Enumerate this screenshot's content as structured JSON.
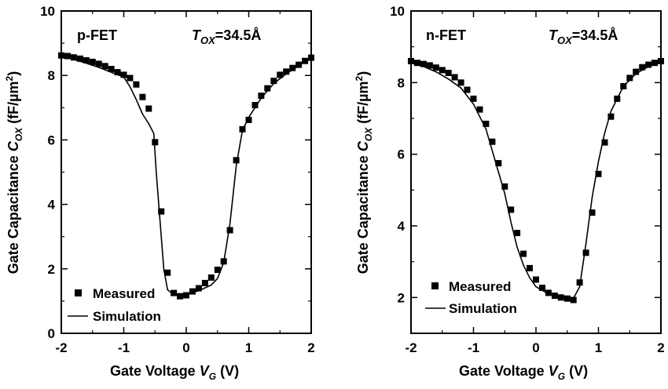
{
  "chart_data": [
    {
      "type": "scatter",
      "panel_label": "p-FET",
      "tox_text": "=34.5Å",
      "xlabel": "Gate Voltage",
      "ylabel": "Gate Capacitance",
      "xlim": [
        -2,
        2
      ],
      "ylim": [
        0,
        10
      ],
      "x_ticks": [
        "-2",
        "-1",
        "0",
        "1",
        "2"
      ],
      "y_ticks": [
        "0",
        "2",
        "4",
        "6",
        "8",
        "10"
      ],
      "legend": {
        "placement": "bottom-left",
        "measured": "Measured",
        "simulation": "Simulation"
      },
      "series": [
        {
          "name": "Measured",
          "style": "square-markers",
          "points": [
            [
              -2.0,
              8.62
            ],
            [
              -1.9,
              8.6
            ],
            [
              -1.8,
              8.56
            ],
            [
              -1.7,
              8.52
            ],
            [
              -1.6,
              8.47
            ],
            [
              -1.5,
              8.42
            ],
            [
              -1.4,
              8.36
            ],
            [
              -1.3,
              8.29
            ],
            [
              -1.2,
              8.2
            ],
            [
              -1.1,
              8.1
            ],
            [
              -1.0,
              8.02
            ],
            [
              -0.9,
              7.92
            ],
            [
              -0.8,
              7.72
            ],
            [
              -0.7,
              7.33
            ],
            [
              -0.6,
              6.97
            ],
            [
              -0.5,
              5.93
            ],
            [
              -0.4,
              3.78
            ],
            [
              -0.3,
              1.88
            ],
            [
              -0.2,
              1.25
            ],
            [
              -0.1,
              1.15
            ],
            [
              0.0,
              1.18
            ],
            [
              0.1,
              1.3
            ],
            [
              0.2,
              1.4
            ],
            [
              0.3,
              1.56
            ],
            [
              0.4,
              1.73
            ],
            [
              0.5,
              1.97
            ],
            [
              0.6,
              2.23
            ],
            [
              0.7,
              3.2
            ],
            [
              0.8,
              5.37
            ],
            [
              0.9,
              6.33
            ],
            [
              1.0,
              6.62
            ],
            [
              1.1,
              7.08
            ],
            [
              1.2,
              7.37
            ],
            [
              1.3,
              7.6
            ],
            [
              1.4,
              7.83
            ],
            [
              1.5,
              8.02
            ],
            [
              1.6,
              8.12
            ],
            [
              1.7,
              8.23
            ],
            [
              1.8,
              8.33
            ],
            [
              1.9,
              8.45
            ],
            [
              2.0,
              8.55
            ]
          ]
        },
        {
          "name": "Simulation",
          "style": "line",
          "points": [
            [
              -2.0,
              8.6
            ],
            [
              -1.8,
              8.5
            ],
            [
              -1.6,
              8.38
            ],
            [
              -1.4,
              8.25
            ],
            [
              -1.2,
              8.1
            ],
            [
              -1.0,
              7.95
            ],
            [
              -0.9,
              7.65
            ],
            [
              -0.8,
              7.25
            ],
            [
              -0.7,
              6.8
            ],
            [
              -0.6,
              6.5
            ],
            [
              -0.52,
              6.2
            ],
            [
              -0.48,
              5.0
            ],
            [
              -0.42,
              3.5
            ],
            [
              -0.36,
              2.0
            ],
            [
              -0.3,
              1.35
            ],
            [
              -0.2,
              1.2
            ],
            [
              -0.1,
              1.2
            ],
            [
              0.0,
              1.22
            ],
            [
              0.2,
              1.32
            ],
            [
              0.4,
              1.5
            ],
            [
              0.5,
              1.7
            ],
            [
              0.6,
              2.2
            ],
            [
              0.7,
              3.4
            ],
            [
              0.8,
              5.2
            ],
            [
              0.9,
              6.3
            ],
            [
              1.0,
              6.7
            ],
            [
              1.2,
              7.3
            ],
            [
              1.4,
              7.75
            ],
            [
              1.6,
              8.05
            ],
            [
              1.8,
              8.3
            ],
            [
              2.0,
              8.55
            ]
          ]
        }
      ]
    },
    {
      "type": "scatter",
      "panel_label": "n-FET",
      "tox_text": "=34.5Å",
      "xlabel": "Gate Voltage",
      "ylabel": "Gate Capacitance",
      "xlim": [
        -2,
        2
      ],
      "ylim": [
        1,
        10
      ],
      "x_ticks": [
        "-2",
        "-1",
        "0",
        "1",
        "2"
      ],
      "y_ticks": [
        "2",
        "4",
        "6",
        "8",
        "10"
      ],
      "legend": {
        "placement": "bottom-left",
        "measured": "Measured",
        "simulation": "Simulation"
      },
      "series": [
        {
          "name": "Measured",
          "style": "square-markers",
          "points": [
            [
              -2.0,
              8.6
            ],
            [
              -1.9,
              8.55
            ],
            [
              -1.8,
              8.52
            ],
            [
              -1.7,
              8.48
            ],
            [
              -1.6,
              8.42
            ],
            [
              -1.5,
              8.35
            ],
            [
              -1.4,
              8.27
            ],
            [
              -1.3,
              8.15
            ],
            [
              -1.2,
              8.0
            ],
            [
              -1.1,
              7.8
            ],
            [
              -1.0,
              7.55
            ],
            [
              -0.9,
              7.25
            ],
            [
              -0.8,
              6.85
            ],
            [
              -0.7,
              6.35
            ],
            [
              -0.6,
              5.75
            ],
            [
              -0.5,
              5.1
            ],
            [
              -0.4,
              4.45
            ],
            [
              -0.3,
              3.8
            ],
            [
              -0.2,
              3.22
            ],
            [
              -0.1,
              2.82
            ],
            [
              0.0,
              2.5
            ],
            [
              0.1,
              2.27
            ],
            [
              0.2,
              2.13
            ],
            [
              0.3,
              2.05
            ],
            [
              0.4,
              2.0
            ],
            [
              0.5,
              1.97
            ],
            [
              0.6,
              1.93
            ],
            [
              0.7,
              2.42
            ],
            [
              0.8,
              3.25
            ],
            [
              0.9,
              4.37
            ],
            [
              1.0,
              5.45
            ],
            [
              1.1,
              6.33
            ],
            [
              1.2,
              7.05
            ],
            [
              1.3,
              7.55
            ],
            [
              1.4,
              7.9
            ],
            [
              1.5,
              8.13
            ],
            [
              1.6,
              8.3
            ],
            [
              1.7,
              8.43
            ],
            [
              1.8,
              8.5
            ],
            [
              1.9,
              8.55
            ],
            [
              2.0,
              8.6
            ]
          ]
        },
        {
          "name": "Simulation",
          "style": "line",
          "points": [
            [
              -2.0,
              8.55
            ],
            [
              -1.8,
              8.45
            ],
            [
              -1.6,
              8.3
            ],
            [
              -1.4,
              8.1
            ],
            [
              -1.2,
              7.85
            ],
            [
              -1.0,
              7.4
            ],
            [
              -0.8,
              6.7
            ],
            [
              -0.6,
              5.5
            ],
            [
              -0.5,
              4.9
            ],
            [
              -0.4,
              4.1
            ],
            [
              -0.3,
              3.4
            ],
            [
              -0.2,
              2.9
            ],
            [
              -0.1,
              2.55
            ],
            [
              0.0,
              2.3
            ],
            [
              0.2,
              2.1
            ],
            [
              0.4,
              2.0
            ],
            [
              0.6,
              1.98
            ],
            [
              0.7,
              2.3
            ],
            [
              0.8,
              3.5
            ],
            [
              0.9,
              4.8
            ],
            [
              1.0,
              5.8
            ],
            [
              1.1,
              6.6
            ],
            [
              1.2,
              7.2
            ],
            [
              1.4,
              7.9
            ],
            [
              1.6,
              8.25
            ],
            [
              1.8,
              8.45
            ],
            [
              2.0,
              8.58
            ]
          ]
        }
      ]
    }
  ]
}
